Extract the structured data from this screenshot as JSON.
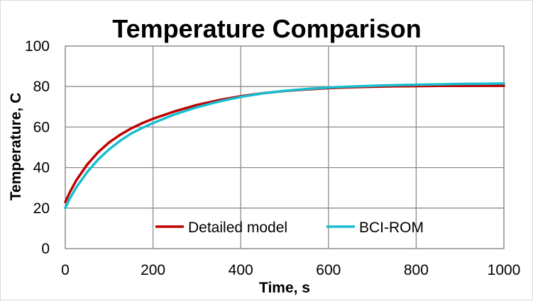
{
  "chart_data": {
    "type": "line",
    "title": "Temperature Comparison",
    "xlabel": "Time, s",
    "ylabel": "Temperature, C",
    "xlim": [
      0,
      1000
    ],
    "ylim": [
      0,
      100
    ],
    "xticks": [
      0,
      200,
      400,
      600,
      800,
      1000
    ],
    "yticks": [
      0,
      20,
      40,
      60,
      80,
      100
    ],
    "grid": true,
    "legend_position": "bottom-center",
    "series": [
      {
        "name": "Detailed model",
        "color": "#c00000",
        "x": [
          0,
          10,
          25,
          50,
          75,
          100,
          125,
          150,
          175,
          200,
          250,
          300,
          350,
          400,
          450,
          500,
          550,
          600,
          650,
          700,
          750,
          800,
          850,
          900,
          950,
          1000
        ],
        "y": [
          23.0,
          27.7,
          33.7,
          41.5,
          47.6,
          52.4,
          56.2,
          59.3,
          61.9,
          64.1,
          67.8,
          70.9,
          73.3,
          75.2,
          76.7,
          77.8,
          78.6,
          79.2,
          79.6,
          79.9,
          80.1,
          80.2,
          80.3,
          80.35,
          80.4,
          80.4
        ]
      },
      {
        "name": "BCI-ROM",
        "color": "#17becf",
        "x": [
          0,
          10,
          25,
          50,
          75,
          100,
          125,
          150,
          175,
          200,
          250,
          300,
          350,
          400,
          450,
          500,
          550,
          600,
          650,
          700,
          750,
          800,
          850,
          900,
          950,
          1000
        ],
        "y": [
          20.0,
          24.6,
          30.2,
          37.8,
          44.0,
          49.0,
          53.2,
          56.8,
          59.5,
          62.0,
          66.3,
          69.8,
          72.6,
          74.9,
          76.6,
          77.9,
          78.8,
          79.5,
          80.0,
          80.4,
          80.7,
          80.9,
          81.1,
          81.3,
          81.4,
          81.5
        ]
      }
    ]
  }
}
